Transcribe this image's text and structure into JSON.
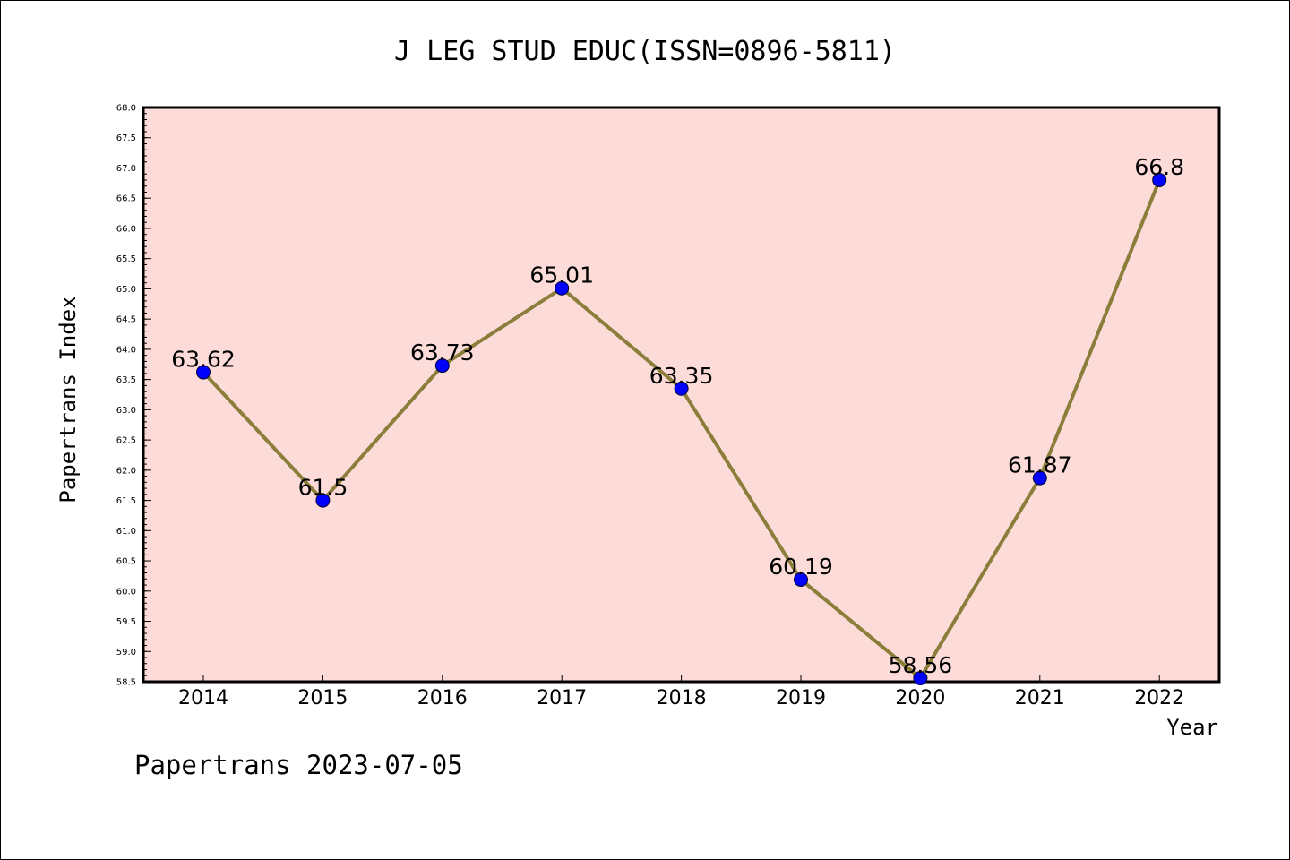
{
  "chart_data": {
    "type": "line",
    "title": "J LEG STUD EDUC(ISSN=0896-5811)",
    "xlabel": "Year",
    "ylabel": "Papertrans Index",
    "categories": [
      "2014",
      "2015",
      "2016",
      "2017",
      "2018",
      "2019",
      "2020",
      "2021",
      "2022"
    ],
    "series": [
      {
        "values": [
          63.62,
          61.5,
          63.73,
          65.01,
          63.35,
          60.19,
          58.56,
          61.87,
          66.8
        ],
        "data_labels": [
          "63.62",
          "61.5",
          "63.73",
          "65.01",
          "63.35",
          "60.19",
          "58.56",
          "61.87",
          "66.8"
        ],
        "line_color": "#8b7d3a",
        "marker_color": "#0000ff"
      }
    ],
    "ylim": [
      58.5,
      68.0
    ],
    "yticks": [
      "58.5",
      "59.0",
      "59.5",
      "60.0",
      "60.5",
      "61.0",
      "61.5",
      "62.0",
      "62.5",
      "63.0",
      "63.5",
      "64.0",
      "64.5",
      "65.0",
      "65.5",
      "66.0",
      "66.5",
      "67.0",
      "67.5",
      "68.0"
    ],
    "plot_background": "#fddbd8",
    "grid": false
  },
  "footer": "Papertrans 2023-07-05"
}
